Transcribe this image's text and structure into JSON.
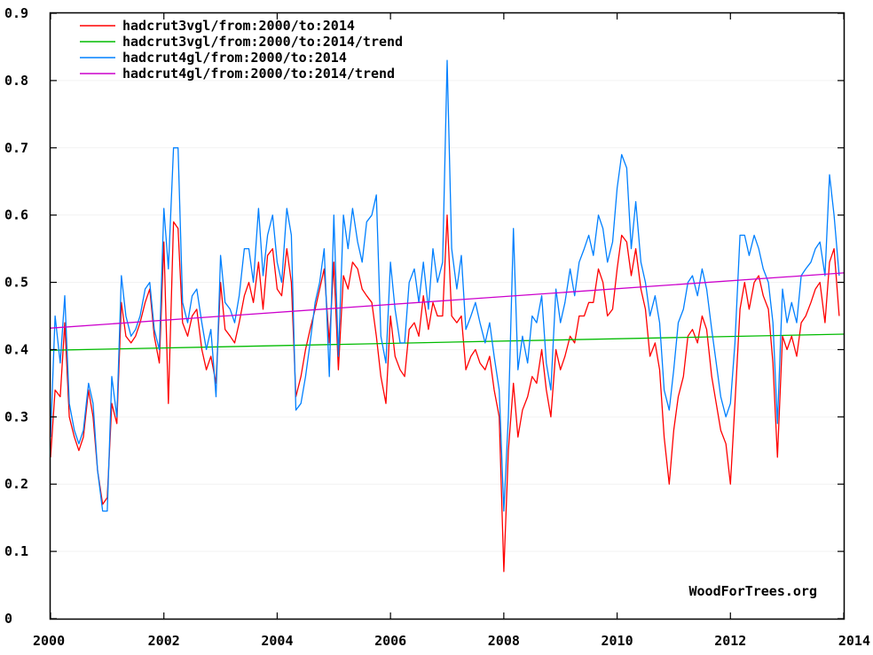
{
  "chart_data": {
    "type": "line",
    "title": "",
    "xlabel": "",
    "ylabel": "",
    "xlim": [
      2000,
      2014
    ],
    "ylim": [
      0,
      0.9
    ],
    "x_ticks": [
      2000,
      2002,
      2004,
      2006,
      2008,
      2010,
      2012,
      2014
    ],
    "y_ticks": [
      0,
      0.1,
      0.2,
      0.3,
      0.4,
      0.5,
      0.6,
      0.7,
      0.8,
      0.9
    ],
    "x_tick_labels": [
      "2000",
      "2002",
      "2004",
      "2006",
      "2008",
      "2010",
      "2012",
      "2014"
    ],
    "y_tick_labels": [
      "0",
      "0.1",
      "0.2",
      "0.3",
      "0.4",
      "0.5",
      "0.6",
      "0.7",
      "0.8",
      "0.9"
    ],
    "legend_position": "top-left",
    "credit": "WoodForTrees.org",
    "series": [
      {
        "name": "hadcrut3vgl/from:2000/to:2014",
        "color": "#ff0000",
        "x": [
          2000.0,
          2000.08,
          2000.17,
          2000.25,
          2000.33,
          2000.42,
          2000.5,
          2000.58,
          2000.67,
          2000.75,
          2000.83,
          2000.92,
          2001.0,
          2001.08,
          2001.17,
          2001.25,
          2001.33,
          2001.42,
          2001.5,
          2001.58,
          2001.67,
          2001.75,
          2001.83,
          2001.92,
          2002.0,
          2002.08,
          2002.17,
          2002.25,
          2002.33,
          2002.42,
          2002.5,
          2002.58,
          2002.67,
          2002.75,
          2002.83,
          2002.92,
          2003.0,
          2003.08,
          2003.17,
          2003.25,
          2003.33,
          2003.42,
          2003.5,
          2003.58,
          2003.67,
          2003.75,
          2003.83,
          2003.92,
          2004.0,
          2004.08,
          2004.17,
          2004.25,
          2004.33,
          2004.42,
          2004.5,
          2004.58,
          2004.67,
          2004.75,
          2004.83,
          2004.92,
          2005.0,
          2005.08,
          2005.17,
          2005.25,
          2005.33,
          2005.42,
          2005.5,
          2005.58,
          2005.67,
          2005.75,
          2005.83,
          2005.92,
          2006.0,
          2006.08,
          2006.17,
          2006.25,
          2006.33,
          2006.42,
          2006.5,
          2006.58,
          2006.67,
          2006.75,
          2006.83,
          2006.92,
          2007.0,
          2007.08,
          2007.17,
          2007.25,
          2007.33,
          2007.42,
          2007.5,
          2007.58,
          2007.67,
          2007.75,
          2007.83,
          2007.92,
          2008.0,
          2008.08,
          2008.17,
          2008.25,
          2008.33,
          2008.42,
          2008.5,
          2008.58,
          2008.67,
          2008.75,
          2008.83,
          2008.92,
          2009.0,
          2009.08,
          2009.17,
          2009.25,
          2009.33,
          2009.42,
          2009.5,
          2009.58,
          2009.67,
          2009.75,
          2009.83,
          2009.92,
          2010.0,
          2010.08,
          2010.17,
          2010.25,
          2010.33,
          2010.42,
          2010.5,
          2010.58,
          2010.67,
          2010.75,
          2010.83,
          2010.92,
          2011.0,
          2011.08,
          2011.17,
          2011.25,
          2011.33,
          2011.42,
          2011.5,
          2011.58,
          2011.67,
          2011.75,
          2011.83,
          2011.92,
          2012.0,
          2012.08,
          2012.17,
          2012.25,
          2012.33,
          2012.42,
          2012.5,
          2012.58,
          2012.67,
          2012.75,
          2012.83,
          2012.92,
          2013.0,
          2013.08,
          2013.17,
          2013.25,
          2013.33,
          2013.42,
          2013.5,
          2013.58,
          2013.67,
          2013.75,
          2013.83,
          2013.92
        ],
        "y": [
          0.24,
          0.34,
          0.33,
          0.44,
          0.3,
          0.27,
          0.25,
          0.27,
          0.34,
          0.3,
          0.22,
          0.17,
          0.18,
          0.32,
          0.29,
          0.47,
          0.42,
          0.41,
          0.42,
          0.44,
          0.47,
          0.49,
          0.42,
          0.38,
          0.56,
          0.32,
          0.59,
          0.58,
          0.44,
          0.42,
          0.45,
          0.46,
          0.4,
          0.37,
          0.39,
          0.35,
          0.5,
          0.43,
          0.42,
          0.41,
          0.44,
          0.48,
          0.5,
          0.47,
          0.53,
          0.46,
          0.54,
          0.55,
          0.49,
          0.48,
          0.55,
          0.5,
          0.33,
          0.36,
          0.4,
          0.43,
          0.46,
          0.49,
          0.52,
          0.41,
          0.53,
          0.37,
          0.51,
          0.49,
          0.53,
          0.52,
          0.49,
          0.48,
          0.47,
          0.42,
          0.36,
          0.32,
          0.45,
          0.39,
          0.37,
          0.36,
          0.43,
          0.44,
          0.42,
          0.48,
          0.43,
          0.47,
          0.45,
          0.45,
          0.6,
          0.45,
          0.44,
          0.45,
          0.37,
          0.39,
          0.4,
          0.38,
          0.37,
          0.39,
          0.34,
          0.3,
          0.07,
          0.25,
          0.35,
          0.27,
          0.31,
          0.33,
          0.36,
          0.35,
          0.4,
          0.34,
          0.3,
          0.4,
          0.37,
          0.39,
          0.42,
          0.41,
          0.45,
          0.45,
          0.47,
          0.47,
          0.52,
          0.5,
          0.45,
          0.46,
          0.52,
          0.57,
          0.56,
          0.51,
          0.55,
          0.49,
          0.46,
          0.39,
          0.41,
          0.37,
          0.27,
          0.2,
          0.28,
          0.33,
          0.36,
          0.42,
          0.43,
          0.41,
          0.45,
          0.43,
          0.36,
          0.32,
          0.28,
          0.26,
          0.2,
          0.32,
          0.46,
          0.5,
          0.46,
          0.5,
          0.51,
          0.48,
          0.46,
          0.38,
          0.24,
          0.42,
          0.4,
          0.42,
          0.39,
          0.44,
          0.45,
          0.47,
          0.49,
          0.5,
          0.44,
          0.53,
          0.55,
          0.45
        ]
      },
      {
        "name": "hadcrut3vgl/from:2000/to:2014/trend",
        "color": "#00bb00",
        "x": [
          2000.0,
          2014.0
        ],
        "y": [
          0.399,
          0.423
        ]
      },
      {
        "name": "hadcrut4gl/from:2000/to:2014",
        "color": "#0080ff",
        "x": [
          2000.0,
          2000.08,
          2000.17,
          2000.25,
          2000.33,
          2000.42,
          2000.5,
          2000.58,
          2000.67,
          2000.75,
          2000.83,
          2000.92,
          2001.0,
          2001.08,
          2001.17,
          2001.25,
          2001.33,
          2001.42,
          2001.5,
          2001.58,
          2001.67,
          2001.75,
          2001.83,
          2001.92,
          2002.0,
          2002.08,
          2002.17,
          2002.25,
          2002.33,
          2002.42,
          2002.5,
          2002.58,
          2002.67,
          2002.75,
          2002.83,
          2002.92,
          2003.0,
          2003.08,
          2003.17,
          2003.25,
          2003.33,
          2003.42,
          2003.5,
          2003.58,
          2003.67,
          2003.75,
          2003.83,
          2003.92,
          2004.0,
          2004.08,
          2004.17,
          2004.25,
          2004.33,
          2004.42,
          2004.5,
          2004.58,
          2004.67,
          2004.75,
          2004.83,
          2004.92,
          2005.0,
          2005.08,
          2005.17,
          2005.25,
          2005.33,
          2005.42,
          2005.5,
          2005.58,
          2005.67,
          2005.75,
          2005.83,
          2005.92,
          2006.0,
          2006.08,
          2006.17,
          2006.25,
          2006.33,
          2006.42,
          2006.5,
          2006.58,
          2006.67,
          2006.75,
          2006.83,
          2006.92,
          2007.0,
          2007.08,
          2007.17,
          2007.25,
          2007.33,
          2007.42,
          2007.5,
          2007.58,
          2007.67,
          2007.75,
          2007.83,
          2007.92,
          2008.0,
          2008.08,
          2008.17,
          2008.25,
          2008.33,
          2008.42,
          2008.5,
          2008.58,
          2008.67,
          2008.75,
          2008.83,
          2008.92,
          2009.0,
          2009.08,
          2009.17,
          2009.25,
          2009.33,
          2009.42,
          2009.5,
          2009.58,
          2009.67,
          2009.75,
          2009.83,
          2009.92,
          2010.0,
          2010.08,
          2010.17,
          2010.25,
          2010.33,
          2010.42,
          2010.5,
          2010.58,
          2010.67,
          2010.75,
          2010.83,
          2010.92,
          2011.0,
          2011.08,
          2011.17,
          2011.25,
          2011.33,
          2011.42,
          2011.5,
          2011.58,
          2011.67,
          2011.75,
          2011.83,
          2011.92,
          2012.0,
          2012.08,
          2012.17,
          2012.25,
          2012.33,
          2012.42,
          2012.5,
          2012.58,
          2012.67,
          2012.75,
          2012.83,
          2012.92,
          2013.0,
          2013.08,
          2013.17,
          2013.25,
          2013.33,
          2013.42,
          2013.5,
          2013.58,
          2013.67,
          2013.75,
          2013.83,
          2013.92
        ],
        "y": [
          0.27,
          0.45,
          0.38,
          0.48,
          0.32,
          0.28,
          0.26,
          0.28,
          0.35,
          0.32,
          0.22,
          0.16,
          0.16,
          0.36,
          0.3,
          0.51,
          0.45,
          0.42,
          0.43,
          0.45,
          0.49,
          0.5,
          0.43,
          0.4,
          0.61,
          0.52,
          0.7,
          0.7,
          0.47,
          0.44,
          0.48,
          0.49,
          0.44,
          0.4,
          0.43,
          0.33,
          0.54,
          0.47,
          0.46,
          0.44,
          0.48,
          0.55,
          0.55,
          0.5,
          0.61,
          0.51,
          0.57,
          0.6,
          0.53,
          0.5,
          0.61,
          0.57,
          0.31,
          0.32,
          0.36,
          0.41,
          0.47,
          0.5,
          0.55,
          0.36,
          0.6,
          0.39,
          0.6,
          0.55,
          0.61,
          0.56,
          0.53,
          0.59,
          0.6,
          0.63,
          0.42,
          0.38,
          0.53,
          0.46,
          0.41,
          0.41,
          0.5,
          0.52,
          0.47,
          0.53,
          0.46,
          0.55,
          0.5,
          0.53,
          0.83,
          0.55,
          0.49,
          0.54,
          0.43,
          0.45,
          0.47,
          0.44,
          0.41,
          0.44,
          0.39,
          0.34,
          0.16,
          0.3,
          0.58,
          0.37,
          0.42,
          0.38,
          0.45,
          0.44,
          0.48,
          0.38,
          0.34,
          0.49,
          0.44,
          0.47,
          0.52,
          0.48,
          0.53,
          0.55,
          0.57,
          0.54,
          0.6,
          0.58,
          0.53,
          0.56,
          0.64,
          0.69,
          0.67,
          0.55,
          0.62,
          0.53,
          0.5,
          0.45,
          0.48,
          0.44,
          0.34,
          0.31,
          0.37,
          0.44,
          0.46,
          0.5,
          0.51,
          0.48,
          0.52,
          0.49,
          0.43,
          0.38,
          0.33,
          0.3,
          0.32,
          0.41,
          0.57,
          0.57,
          0.54,
          0.57,
          0.55,
          0.52,
          0.5,
          0.44,
          0.29,
          0.49,
          0.44,
          0.47,
          0.44,
          0.51,
          0.52,
          0.53,
          0.55,
          0.56,
          0.51,
          0.66,
          0.6,
          0.51
        ]
      },
      {
        "name": "hadcrut4gl/from:2000/to:2014/trend",
        "color": "#cc00cc",
        "x": [
          2000.0,
          2014.0
        ],
        "y": [
          0.432,
          0.514
        ]
      }
    ]
  }
}
